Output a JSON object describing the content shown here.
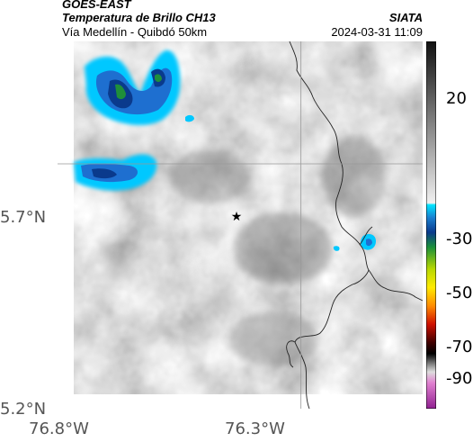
{
  "header": {
    "satellite": "GOES-EAST",
    "product": "Temperatura de Brillo CH13",
    "route": "Vía Medellín - Quibdó 50km",
    "source": "SIATA",
    "datetime": "2024-03-31 11:09"
  },
  "axes": {
    "lat_ticks": [
      {
        "label": "5.7°N",
        "value": 5.7
      },
      {
        "label": "5.2°N",
        "value": 5.2
      }
    ],
    "lon_ticks": [
      {
        "label": "76.8°W",
        "value": -76.8
      },
      {
        "label": "76.3°W",
        "value": -76.3
      }
    ],
    "lat_range": [
      5.2,
      5.95
    ],
    "lon_range": [
      -76.8,
      -76.05
    ]
  },
  "gridlines": {
    "lat": 5.7,
    "lon": -76.3
  },
  "marker": {
    "lat": 5.7,
    "lon": -76.34,
    "symbol": "star"
  },
  "colorbar": {
    "ticks": [
      {
        "label": "20",
        "value": 20
      },
      {
        "label": "-30",
        "value": -30
      },
      {
        "label": "-50",
        "value": -50
      },
      {
        "label": "-70",
        "value": -70
      },
      {
        "label": "-90",
        "value": -90
      }
    ]
  },
  "colors": {
    "gridline": "#999999",
    "boundary": "#222222",
    "cold_cloud": "#00c8ff",
    "deep_cloud": "#0a3a8c",
    "core": "#1f8f3a"
  }
}
